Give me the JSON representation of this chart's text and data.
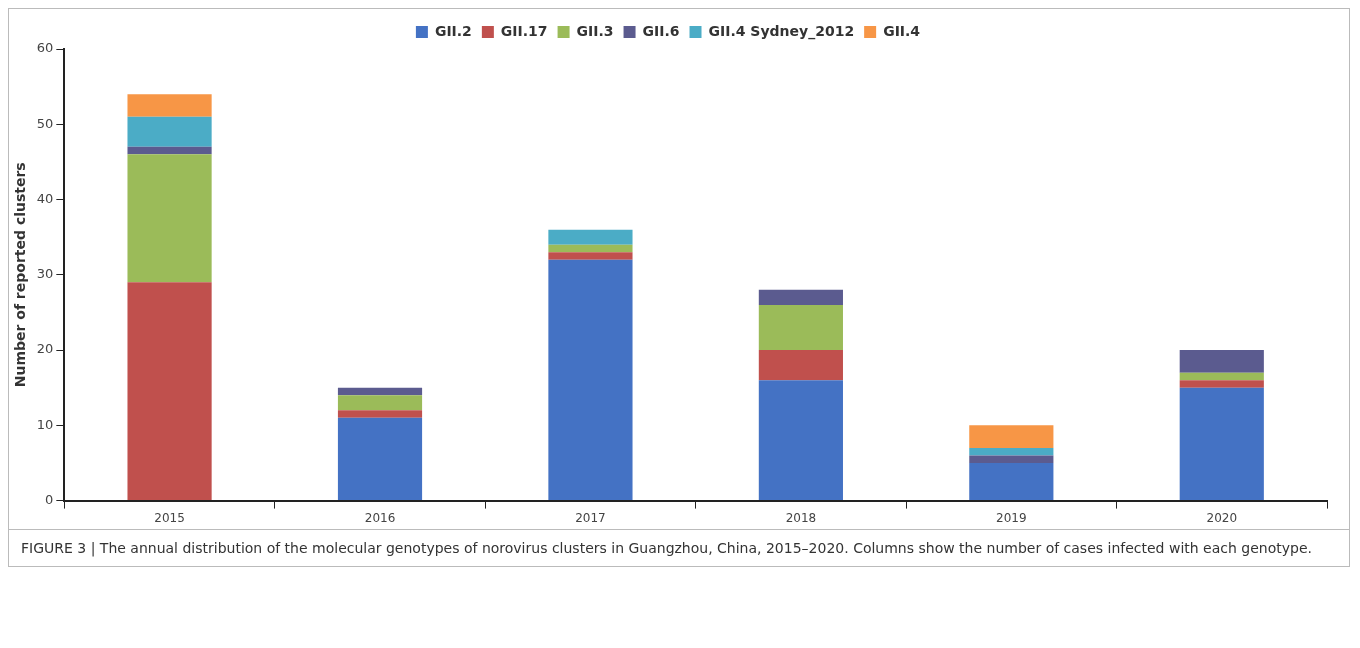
{
  "chart_data": {
    "type": "bar",
    "stacked": true,
    "ylabel": "Number of reported clusters",
    "categories": [
      "2015",
      "2016",
      "2017",
      "2018",
      "2019",
      "2020"
    ],
    "series": [
      {
        "name": "GII.2",
        "color": "#4472c4",
        "values": [
          0,
          11,
          32,
          16,
          5,
          15
        ]
      },
      {
        "name": "GII.17",
        "color": "#c0504d",
        "values": [
          29,
          1,
          1,
          4,
          0,
          1
        ]
      },
      {
        "name": "GII.3",
        "color": "#9bbb59",
        "values": [
          17,
          2,
          1,
          6,
          0,
          1
        ]
      },
      {
        "name": "GII.6",
        "color": "#5b5b8f",
        "values": [
          1,
          1,
          0,
          2,
          1,
          3
        ]
      },
      {
        "name": "GII.4 Sydney_2012",
        "color": "#4bacc6",
        "values": [
          4,
          0,
          2,
          0,
          1,
          0
        ]
      },
      {
        "name": "GII.4",
        "color": "#f79646",
        "values": [
          3,
          0,
          0,
          0,
          3,
          0
        ]
      }
    ],
    "ylim": [
      0,
      60
    ],
    "yticks": [
      0,
      10,
      20,
      30,
      40,
      50,
      60
    ],
    "grid": false,
    "legend": "top",
    "annotations": [
      "FIGURE 3 | The annual distribution of the molecular genotypes of norovirus clusters in Guangzhou, China, 2015–2020. Columns show the number of cases infected with each genotype."
    ]
  }
}
